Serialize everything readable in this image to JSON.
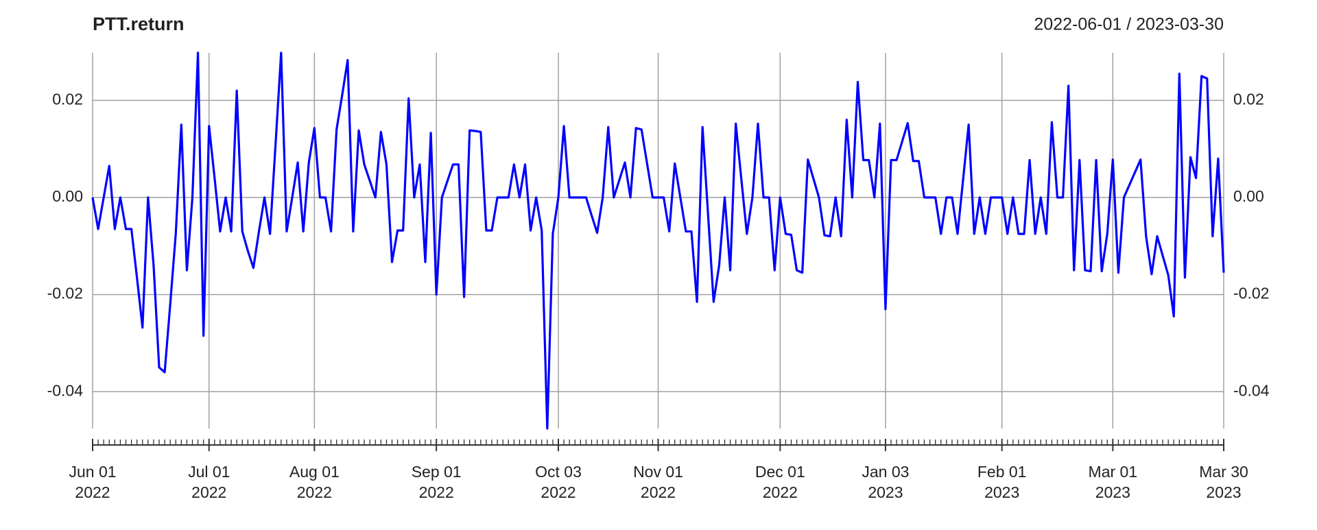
{
  "chart_data": {
    "type": "line",
    "title": "PTT.return",
    "subtitle": "2022-06-01 / 2023-03-30",
    "x": [
      "2022-06-01",
      "2022-06-02",
      "2022-06-06",
      "2022-06-07",
      "2022-06-08",
      "2022-06-09",
      "2022-06-10",
      "2022-06-13",
      "2022-06-14",
      "2022-06-15",
      "2022-06-16",
      "2022-06-17",
      "2022-06-20",
      "2022-06-21",
      "2022-06-22",
      "2022-06-23",
      "2022-06-24",
      "2022-06-27",
      "2022-06-28",
      "2022-06-29",
      "2022-06-30",
      "2022-07-01",
      "2022-07-04",
      "2022-07-05",
      "2022-07-06",
      "2022-07-07",
      "2022-07-08",
      "2022-07-11",
      "2022-07-12",
      "2022-07-14",
      "2022-07-15",
      "2022-07-18",
      "2022-07-19",
      "2022-07-20",
      "2022-07-21",
      "2022-07-22",
      "2022-07-25",
      "2022-07-26",
      "2022-07-27",
      "2022-07-29",
      "2022-08-01",
      "2022-08-02",
      "2022-08-03",
      "2022-08-04",
      "2022-08-05",
      "2022-08-08",
      "2022-08-09",
      "2022-08-10",
      "2022-08-11",
      "2022-08-15",
      "2022-08-16",
      "2022-08-17",
      "2022-08-18",
      "2022-08-19",
      "2022-08-22",
      "2022-08-23",
      "2022-08-24",
      "2022-08-25",
      "2022-08-26",
      "2022-08-29",
      "2022-08-30",
      "2022-08-31",
      "2022-09-01",
      "2022-09-02",
      "2022-09-05",
      "2022-09-06",
      "2022-09-07",
      "2022-09-08",
      "2022-09-09",
      "2022-09-12",
      "2022-09-13",
      "2022-09-14",
      "2022-09-15",
      "2022-09-16",
      "2022-09-19",
      "2022-09-20",
      "2022-09-21",
      "2022-09-22",
      "2022-09-23",
      "2022-09-26",
      "2022-09-27",
      "2022-09-28",
      "2022-09-29",
      "2022-09-30",
      "2022-10-03",
      "2022-10-04",
      "2022-10-05",
      "2022-10-06",
      "2022-10-07",
      "2022-10-10",
      "2022-10-11",
      "2022-10-12",
      "2022-10-17",
      "2022-10-18",
      "2022-10-19",
      "2022-10-20",
      "2022-10-21",
      "2022-10-25",
      "2022-10-26",
      "2022-10-27",
      "2022-10-28",
      "2022-10-31",
      "2022-11-01",
      "2022-11-02",
      "2022-11-03",
      "2022-11-04",
      "2022-11-07",
      "2022-11-08",
      "2022-11-09",
      "2022-11-10",
      "2022-11-11",
      "2022-11-14",
      "2022-11-15",
      "2022-11-16",
      "2022-11-17",
      "2022-11-18",
      "2022-11-21",
      "2022-11-22",
      "2022-11-23",
      "2022-11-24",
      "2022-11-25",
      "2022-11-28",
      "2022-11-29",
      "2022-11-30",
      "2022-12-01",
      "2022-12-02",
      "2022-12-06",
      "2022-12-07",
      "2022-12-08",
      "2022-12-09",
      "2022-12-13",
      "2022-12-14",
      "2022-12-15",
      "2022-12-16",
      "2022-12-19",
      "2022-12-20",
      "2022-12-21",
      "2022-12-22",
      "2022-12-23",
      "2022-12-26",
      "2022-12-27",
      "2022-12-28",
      "2022-12-29",
      "2023-01-03",
      "2023-01-04",
      "2023-01-05",
      "2023-01-06",
      "2023-01-09",
      "2023-01-10",
      "2023-01-11",
      "2023-01-12",
      "2023-01-13",
      "2023-01-16",
      "2023-01-17",
      "2023-01-18",
      "2023-01-19",
      "2023-01-20",
      "2023-01-23",
      "2023-01-24",
      "2023-01-25",
      "2023-01-26",
      "2023-01-27",
      "2023-01-30",
      "2023-01-31",
      "2023-02-01",
      "2023-02-02",
      "2023-02-03",
      "2023-02-06",
      "2023-02-07",
      "2023-02-08",
      "2023-02-09",
      "2023-02-10",
      "2023-02-13",
      "2023-02-14",
      "2023-02-15",
      "2023-02-16",
      "2023-02-17",
      "2023-02-20",
      "2023-02-21",
      "2023-02-22",
      "2023-02-23",
      "2023-02-24",
      "2023-02-27",
      "2023-02-28",
      "2023-03-01",
      "2023-03-02",
      "2023-03-03",
      "2023-03-07",
      "2023-03-08",
      "2023-03-09",
      "2023-03-10",
      "2023-03-13",
      "2023-03-14",
      "2023-03-15",
      "2023-03-16",
      "2023-03-17",
      "2023-03-20",
      "2023-03-21",
      "2023-03-22",
      "2023-03-23",
      "2023-03-24",
      "2023-03-27",
      "2023-03-28",
      "2023-03-29",
      "2023-03-30"
    ],
    "series": [
      {
        "name": "PTT.return",
        "color": "#0000ff",
        "values": [
          0,
          -0.0065,
          0,
          0.0065,
          -0.0065,
          0,
          -0.0065,
          -0.0065,
          -0.0165,
          -0.0268,
          0,
          -0.014,
          -0.035,
          -0.036,
          -0.022,
          -0.0075,
          0.015,
          -0.015,
          0,
          0.0298,
          -0.0285,
          0.0147,
          0.004,
          -0.007,
          0,
          -0.007,
          0.022,
          -0.007,
          -0.011,
          -0.0145,
          -0.007,
          0,
          -0.0075,
          0.011,
          0.0298,
          -0.007,
          0,
          0.0072,
          -0.007,
          0.0072,
          0.0143,
          0,
          0,
          -0.007,
          0.014,
          0.021,
          0.0283,
          -0.007,
          0.0138,
          0.0068,
          0.0034,
          0,
          0.0135,
          0.0068,
          -0.0133,
          -0.0068,
          -0.0068,
          0.0204,
          0,
          0.0068,
          -0.0133,
          0.0133,
          -0.02,
          0,
          0.0034,
          0.0068,
          0.0068,
          -0.0205,
          0.0138,
          0.0137,
          0.0135,
          -0.0068,
          -0.0068,
          0,
          0,
          0,
          0.0068,
          0,
          0.0068,
          -0.0068,
          0,
          -0.0068,
          -0.0476,
          -0.0075,
          0,
          0.0147,
          0,
          0,
          0,
          0,
          -0.0037,
          -0.0073,
          0,
          0.0145,
          0,
          0.0036,
          0.0072,
          0,
          0.0143,
          0.014,
          0.007,
          0,
          0,
          0,
          -0.007,
          0.007,
          0,
          -0.007,
          -0.007,
          -0.0215,
          0.0145,
          -0.0035,
          -0.0215,
          -0.014,
          0,
          -0.015,
          0.0152,
          0.0038,
          -0.0075,
          0,
          0.0152,
          0,
          0,
          -0.015,
          0,
          -0.0075,
          -0.0077,
          -0.015,
          -0.0155,
          0.0078,
          0.0039,
          0,
          -0.0078,
          -0.008,
          0,
          -0.008,
          0.016,
          0,
          0.0238,
          0.0077,
          0.0077,
          0,
          0.0152,
          -0.023,
          0.0077,
          0.0077,
          0.0115,
          0.0153,
          0.0075,
          0.0075,
          0,
          0,
          0,
          -0.0075,
          0,
          0,
          -0.0075,
          0.0037,
          0.015,
          -0.0075,
          0,
          -0.0075,
          0,
          0,
          0,
          -0.0075,
          0,
          -0.0075,
          -0.0075,
          0.0077,
          -0.0075,
          0,
          -0.0075,
          0.0155,
          0,
          0,
          0.023,
          -0.015,
          0.0077,
          -0.015,
          -0.0152,
          0.0077,
          -0.0152,
          -0.0075,
          0.0078,
          -0.0155,
          0,
          0.0026,
          0.0052,
          0.0078,
          -0.008,
          -0.0158,
          -0.008,
          -0.012,
          -0.016,
          -0.0245,
          0.0255,
          -0.0165,
          0.0083,
          0.004,
          0.025,
          0.0245,
          -0.008,
          0.008,
          -0.0155
        ]
      }
    ],
    "ylim": [
      -0.0476,
      0.0298
    ],
    "yticks": [
      0.02,
      {
        "value": 0,
        "label": "0.00"
      },
      -0.02,
      -0.04
    ],
    "xticks": [
      {
        "value": "2022-06-01",
        "label": [
          "Jun 01",
          "2022"
        ]
      },
      {
        "value": "2022-07-01",
        "label": [
          "Jul 01",
          "2022"
        ]
      },
      {
        "value": "2022-08-01",
        "label": [
          "Aug 01",
          "2022"
        ]
      },
      {
        "value": "2022-09-01",
        "label": [
          "Sep 01",
          "2022"
        ]
      },
      {
        "value": "2022-10-03",
        "label": [
          "Oct 03",
          "2022"
        ]
      },
      {
        "value": "2022-11-01",
        "label": [
          "Nov 01",
          "2022"
        ]
      },
      {
        "value": "2022-12-01",
        "label": [
          "Dec 01",
          "2022"
        ]
      },
      {
        "value": "2023-01-03",
        "label": [
          "Jan 03",
          "2023"
        ]
      },
      {
        "value": "2023-02-01",
        "label": [
          "Feb 01",
          "2023"
        ]
      },
      {
        "value": "2023-03-01",
        "label": [
          "Mar 01",
          "2023"
        ]
      },
      {
        "value": "2023-03-30",
        "label": [
          "Mar 30",
          "2023"
        ]
      }
    ],
    "grid": true
  }
}
